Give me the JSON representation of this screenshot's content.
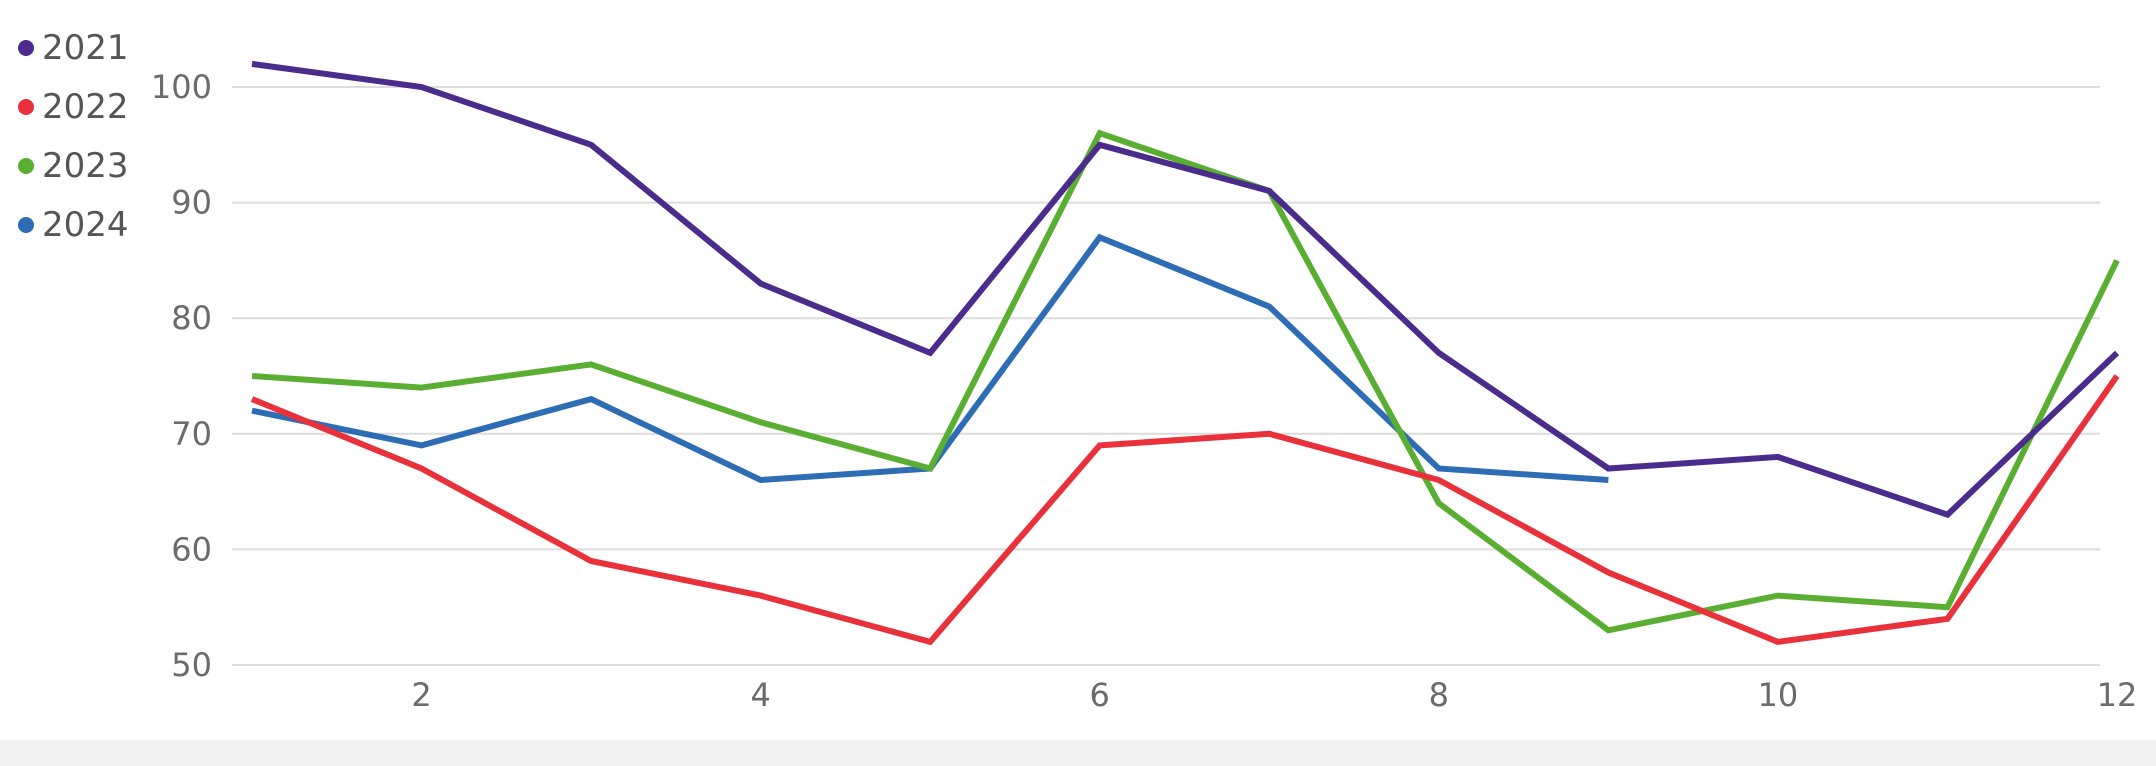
{
  "chart_data": {
    "type": "line",
    "title": "",
    "xlabel": "",
    "ylabel": "",
    "x": [
      1,
      2,
      3,
      4,
      5,
      6,
      7,
      8,
      9,
      10,
      11,
      12
    ],
    "xticks": [
      2,
      4,
      6,
      8,
      10,
      12
    ],
    "yticks": [
      50,
      60,
      70,
      80,
      90,
      100
    ],
    "xlim": [
      1,
      12
    ],
    "ylim": [
      50,
      102
    ],
    "grid": "horizontal",
    "legend": "left",
    "series": [
      {
        "name": "2021",
        "color": "#4b2c8c",
        "values": [
          102,
          100,
          95,
          83,
          77,
          95,
          91,
          77,
          67,
          68,
          63,
          77
        ]
      },
      {
        "name": "2022",
        "color": "#e8313a",
        "values": [
          73,
          67,
          59,
          56,
          52,
          69,
          70,
          66,
          58,
          52,
          54,
          75
        ]
      },
      {
        "name": "2023",
        "color": "#5aae32",
        "values": [
          75,
          74,
          76,
          71,
          67,
          96,
          91,
          64,
          53,
          56,
          55,
          85
        ]
      },
      {
        "name": "2024",
        "color": "#2e6db4",
        "values": [
          72,
          69,
          73,
          66,
          67,
          87,
          81,
          67,
          66,
          null,
          null,
          null
        ]
      }
    ]
  }
}
